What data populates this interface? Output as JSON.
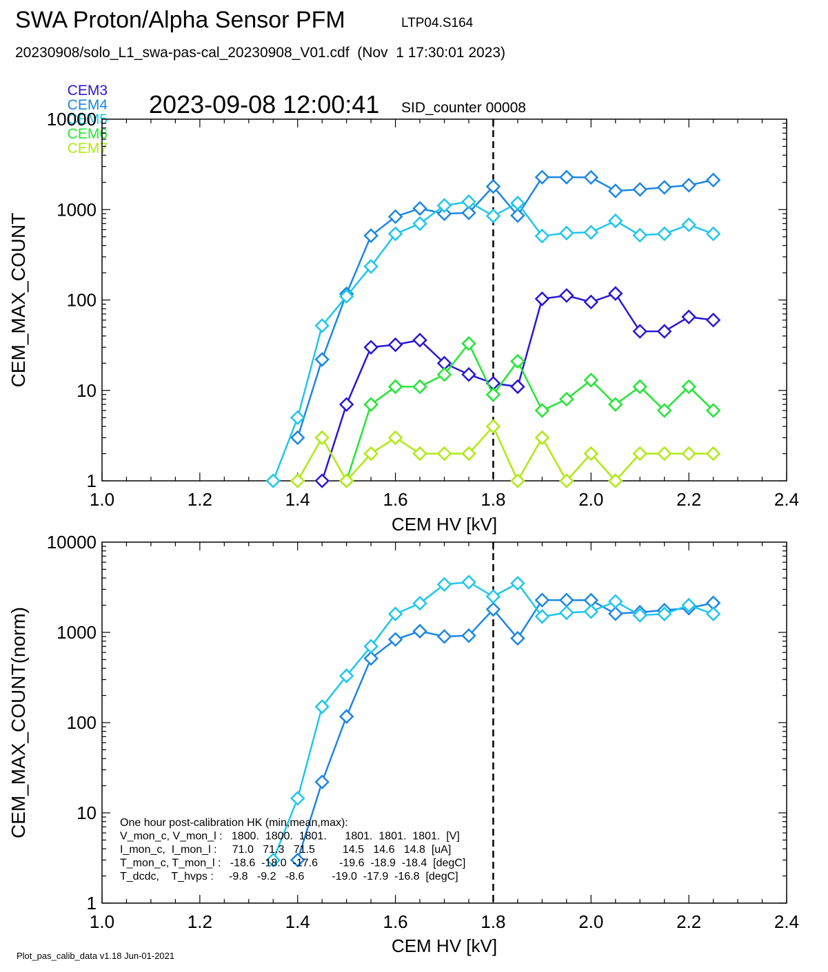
{
  "header": {
    "title": "SWA Proton/Alpha Sensor PFM",
    "title_code": "LTP04.S164",
    "file_line": "20230908/solo_L1_swa-pas-cal_20230908_V01.cdf  (Nov  1 17:30:01 2023)",
    "timestamp": "2023-09-08 12:00:41",
    "sid_counter": "SID_counter 00008"
  },
  "legend": [
    {
      "name": "CEM3",
      "color": "#2a16d6"
    },
    {
      "name": "CEM4",
      "color": "#1a86e4"
    },
    {
      "name": "CEM5",
      "color": "#1ec6ee"
    },
    {
      "name": "CEM6",
      "color": "#22e634"
    },
    {
      "name": "CEM7",
      "color": "#aeea10"
    }
  ],
  "footer": "Plot_pas_calib_data v1.18 Jun-01-2021",
  "hk_text": [
    "One hour post-calibration HK (min,mean,max):",
    "V_mon_c, V_mon_l :   1800.  1800.  1801.      1801.  1801.  1801.  [V]",
    "I_mon_c,  I_mon_l :     71.0   71.3   71.5         14.5   14.6   14.8  [uA]",
    "T_mon_c, T_mon_l :   -18.6  -18.0  -17.6       -19.6  -18.9  -18.4  [degC]",
    "T_dcdc,    T_hvps :     -9.8   -9.2   -8.6         -19.0  -17.9  -16.8  [degC]"
  ],
  "chart_data": [
    {
      "type": "line",
      "xlabel": "CEM HV [kV]",
      "ylabel": "CEM_MAX_COUNT",
      "xlim": [
        1.0,
        2.4
      ],
      "ylim": [
        1,
        10000
      ],
      "yscale": "log",
      "xticks": [
        "1.0",
        "1.2",
        "1.4",
        "1.6",
        "1.8",
        "2.0",
        "2.2",
        "2.4"
      ],
      "yticks": [
        "1",
        "10",
        "100",
        "1000",
        "10000"
      ],
      "vline_x": 1.8,
      "marker": "diamond",
      "series": [
        {
          "name": "CEM3",
          "color": "#2a16d6",
          "x": [
            1.45,
            1.5,
            1.55,
            1.6,
            1.65,
            1.7,
            1.75,
            1.8,
            1.85,
            1.9,
            1.95,
            2.0,
            2.05,
            2.1,
            2.15,
            2.2,
            2.25
          ],
          "y": [
            1,
            7,
            30,
            32,
            36,
            20,
            15,
            12,
            11,
            103,
            112,
            95,
            118,
            45,
            45,
            65,
            60
          ]
        },
        {
          "name": "CEM4",
          "color": "#1a86e4",
          "x": [
            1.4,
            1.45,
            1.5,
            1.55,
            1.6,
            1.65,
            1.7,
            1.75,
            1.8,
            1.85,
            1.9,
            1.95,
            2.0,
            2.05,
            2.1,
            2.15,
            2.2,
            2.25
          ],
          "y": [
            3,
            22,
            117,
            515,
            835,
            1030,
            900,
            920,
            1800,
            860,
            2280,
            2280,
            2270,
            1610,
            1670,
            1760,
            1860,
            2120
          ]
        },
        {
          "name": "CEM5",
          "color": "#1ec6ee",
          "x": [
            1.35,
            1.4,
            1.45,
            1.5,
            1.55,
            1.6,
            1.65,
            1.7,
            1.75,
            1.8,
            1.85,
            1.9,
            1.95,
            2.0,
            2.05,
            2.1,
            2.15,
            2.2,
            2.25
          ],
          "y": [
            1,
            5,
            52,
            110,
            235,
            540,
            700,
            1110,
            1220,
            850,
            1180,
            510,
            550,
            560,
            750,
            520,
            540,
            680,
            540
          ]
        },
        {
          "name": "CEM6",
          "color": "#22e634",
          "x": [
            1.5,
            1.55,
            1.6,
            1.65,
            1.7,
            1.75,
            1.8,
            1.85,
            1.9,
            1.95,
            2.0,
            2.05,
            2.1,
            2.15,
            2.2,
            2.25
          ],
          "y": [
            1,
            7,
            11,
            11,
            15,
            33,
            9,
            21,
            6,
            8,
            13,
            7,
            11,
            6,
            11,
            6
          ]
        },
        {
          "name": "CEM7",
          "color": "#aeea10",
          "x": [
            1.4,
            1.45,
            1.5,
            1.55,
            1.6,
            1.65,
            1.7,
            1.75,
            1.8,
            1.85,
            1.9,
            1.95,
            2.0,
            2.05,
            2.1,
            2.15,
            2.2,
            2.25
          ],
          "y": [
            1,
            3,
            1,
            2,
            3,
            2,
            2,
            2,
            4,
            1,
            3,
            1,
            2,
            1,
            2,
            2,
            2,
            2
          ]
        }
      ]
    },
    {
      "type": "line",
      "xlabel": "CEM HV [kV]",
      "ylabel": "CEM_MAX_COUNT(norm)",
      "xlim": [
        1.0,
        2.4
      ],
      "ylim": [
        1,
        10000
      ],
      "yscale": "log",
      "xticks": [
        "1.0",
        "1.2",
        "1.4",
        "1.6",
        "1.8",
        "2.0",
        "2.2",
        "2.4"
      ],
      "yticks": [
        "1",
        "10",
        "100",
        "1000",
        "10000"
      ],
      "vline_x": 1.8,
      "marker": "diamond",
      "series": [
        {
          "name": "CEM4",
          "color": "#1a86e4",
          "x": [
            1.4,
            1.45,
            1.5,
            1.55,
            1.6,
            1.65,
            1.7,
            1.75,
            1.8,
            1.85,
            1.9,
            1.95,
            2.0,
            2.05,
            2.1,
            2.15,
            2.2,
            2.25
          ],
          "y": [
            3,
            22,
            117,
            515,
            835,
            1030,
            900,
            920,
            1800,
            860,
            2280,
            2280,
            2270,
            1610,
            1670,
            1760,
            1860,
            2120
          ]
        },
        {
          "name": "CEM5",
          "color": "#1ec6ee",
          "x": [
            1.35,
            1.4,
            1.45,
            1.5,
            1.55,
            1.6,
            1.65,
            1.7,
            1.75,
            1.8,
            1.85,
            1.9,
            1.95,
            2.0,
            2.05,
            2.1,
            2.15,
            2.2,
            2.25
          ],
          "y": [
            3,
            14.5,
            150,
            330,
            700,
            1600,
            2100,
            3400,
            3600,
            2500,
            3500,
            1500,
            1650,
            1700,
            2200,
            1550,
            1600,
            2000,
            1600
          ]
        }
      ]
    }
  ]
}
